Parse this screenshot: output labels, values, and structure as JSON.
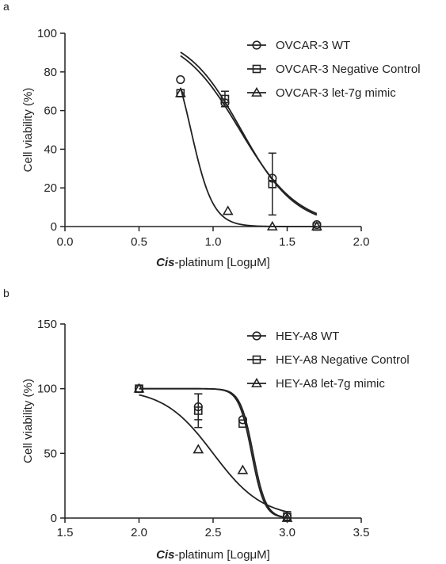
{
  "chart_data": [
    {
      "panel_label": "a",
      "type": "scatter",
      "xlabel_italic": "Cis",
      "xlabel_rest": "-platinum [LogμM]",
      "ylabel": "Cell viability (%)",
      "xlim": [
        0.0,
        2.0
      ],
      "ylim": [
        0,
        100
      ],
      "xticks": [
        0.0,
        0.5,
        1.0,
        1.5,
        2.0
      ],
      "xtick_labels": [
        "0.0",
        "0.5",
        "1.0",
        "1.5",
        "2.0"
      ],
      "yticks": [
        0,
        20,
        40,
        60,
        80,
        100
      ],
      "ytick_labels": [
        "0",
        "20",
        "40",
        "60",
        "80",
        "100"
      ],
      "legend_position": "top-right",
      "series": [
        {
          "name": "OVCAR-3 WT",
          "marker": "circle",
          "x": [
            0.78,
            1.08,
            1.4,
            1.7
          ],
          "y": [
            76,
            64,
            25,
            1
          ],
          "err": [
            0,
            0,
            0,
            0
          ],
          "fit": {
            "top": 100,
            "bottom": 0,
            "logEC50": 1.18,
            "hill": -2.2
          }
        },
        {
          "name": "OVCAR-3 Negative Control",
          "marker": "square",
          "x": [
            0.78,
            1.08,
            1.4,
            1.7
          ],
          "y": [
            69,
            66,
            22,
            0
          ],
          "err": [
            0,
            4,
            16,
            0
          ],
          "fit": {
            "top": 100,
            "bottom": 0,
            "logEC50": 1.19,
            "hill": -2.35
          }
        },
        {
          "name": "OVCAR-3 let-7g mimic",
          "marker": "triangle",
          "x": [
            0.78,
            1.1,
            1.4,
            1.7
          ],
          "y": [
            69,
            8,
            0,
            0
          ],
          "err": [
            0,
            0,
            0,
            0
          ],
          "fit": {
            "top": 100,
            "bottom": 0,
            "logEC50": 0.85,
            "hill": -5.8
          }
        }
      ]
    },
    {
      "panel_label": "b",
      "type": "scatter",
      "xlabel_italic": "Cis",
      "xlabel_rest": "-platinum [LogμM]",
      "ylabel": "Cell viability (%)",
      "xlim": [
        1.5,
        3.5
      ],
      "ylim": [
        0,
        150
      ],
      "xticks": [
        1.5,
        2.0,
        2.5,
        3.0,
        3.5
      ],
      "xtick_labels": [
        "1.5",
        "2.0",
        "2.5",
        "3.0",
        "3.5"
      ],
      "yticks": [
        0,
        50,
        100,
        150
      ],
      "ytick_labels": [
        "0",
        "50",
        "100",
        "150"
      ],
      "legend_position": "top-right",
      "series": [
        {
          "name": "HEY-A8 WT",
          "marker": "circle",
          "x": [
            2.0,
            2.4,
            2.7,
            3.0
          ],
          "y": [
            100,
            86,
            76,
            1
          ],
          "err": [
            0,
            10,
            0,
            0
          ],
          "fit": {
            "top": 100,
            "bottom": 0,
            "logEC50": 2.77,
            "hill": -10
          }
        },
        {
          "name": "HEY-A8 Negative Control",
          "marker": "square",
          "x": [
            2.0,
            2.4,
            2.7,
            3.0
          ],
          "y": [
            100,
            83,
            73,
            1
          ],
          "err": [
            0,
            13,
            0,
            4
          ],
          "fit": {
            "top": 100,
            "bottom": 0,
            "logEC50": 2.76,
            "hill": -10
          }
        },
        {
          "name": "HEY-A8 let-7g mimic",
          "marker": "triangle",
          "x": [
            2.0,
            2.4,
            2.7,
            3.0
          ],
          "y": [
            100,
            53,
            37,
            0
          ],
          "err": [
            0,
            0,
            0,
            0
          ],
          "fit": {
            "top": 100,
            "bottom": 0,
            "logEC50": 2.5,
            "hill": -2.6
          }
        }
      ]
    }
  ]
}
